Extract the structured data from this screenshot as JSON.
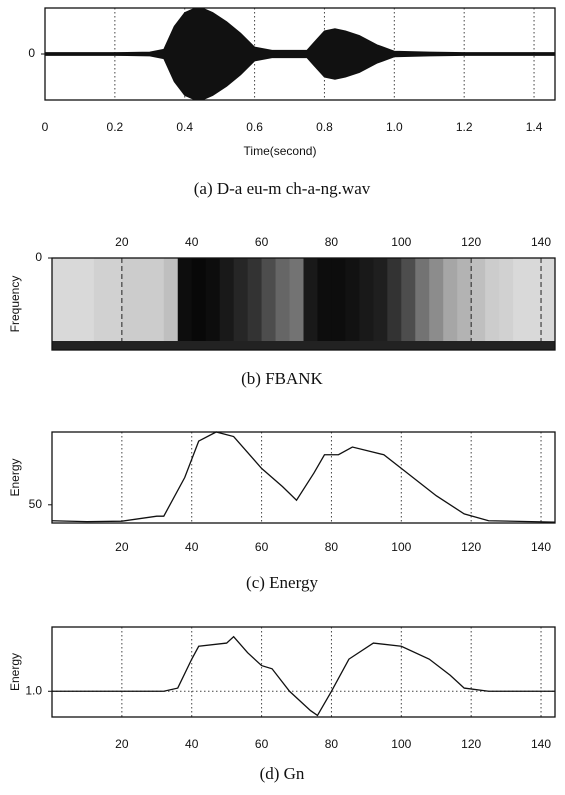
{
  "chart_data": [
    {
      "type": "waveform",
      "caption": "(a) D-a eu-m ch-a-ng.wav",
      "x_label": "Time(second)",
      "x": [
        0,
        0.1,
        0.2,
        0.3,
        0.34,
        0.37,
        0.4,
        0.43,
        0.45,
        0.48,
        0.52,
        0.56,
        0.6,
        0.65,
        0.7,
        0.75,
        0.77,
        0.8,
        0.83,
        0.86,
        0.9,
        0.95,
        1.0,
        1.1,
        1.2,
        1.3,
        1.46
      ],
      "values": [
        0.03,
        0.03,
        0.03,
        0.04,
        0.1,
        0.6,
        0.9,
        1.0,
        1.0,
        0.9,
        0.7,
        0.45,
        0.15,
        0.08,
        0.08,
        0.08,
        0.25,
        0.5,
        0.55,
        0.5,
        0.4,
        0.2,
        0.06,
        0.04,
        0.03,
        0.03,
        0.03
      ],
      "color": "#111111",
      "xlim": [
        0,
        1.46
      ],
      "ylim": [
        -1,
        1
      ],
      "xticks": [
        0,
        0.2,
        0.4,
        0.6,
        0.8,
        {
          "value": 1,
          "label": "1.0"
        },
        1.2,
        1.4
      ],
      "yticks": [
        0
      ],
      "grid": "x"
    },
    {
      "type": "heatmap",
      "caption": "(b) FBANK",
      "y_label": "Frequency",
      "x": [
        0,
        4,
        8,
        12,
        16,
        20,
        24,
        28,
        32,
        36,
        40,
        44,
        48,
        52,
        56,
        60,
        64,
        68,
        72,
        76,
        80,
        84,
        88,
        92,
        96,
        100,
        104,
        108,
        112,
        116,
        120,
        124,
        128,
        132,
        136,
        140
      ],
      "values": [
        0.15,
        0.15,
        0.15,
        0.18,
        0.18,
        0.2,
        0.2,
        0.2,
        0.25,
        0.95,
        0.97,
        0.95,
        0.9,
        0.85,
        0.8,
        0.7,
        0.6,
        0.55,
        0.9,
        0.95,
        0.95,
        0.93,
        0.9,
        0.88,
        0.8,
        0.7,
        0.55,
        0.45,
        0.35,
        0.3,
        0.25,
        0.2,
        0.18,
        0.15,
        0.15,
        0.15
      ],
      "xlim": [
        0,
        144
      ],
      "xticks": [
        20,
        40,
        60,
        80,
        100,
        120,
        140
      ],
      "yticks": [
        0
      ]
    },
    {
      "type": "line",
      "caption": "(c) Energy",
      "y_label": "Energy",
      "x": [
        0,
        10,
        20,
        30,
        32,
        38,
        42,
        47,
        52,
        60,
        66,
        70,
        75,
        78,
        82,
        86,
        95,
        100,
        110,
        118,
        125,
        144
      ],
      "values": [
        46.5,
        46.3,
        46.4,
        47.5,
        47.5,
        56,
        64,
        66,
        65,
        58,
        54,
        51,
        57,
        61,
        61,
        62.7,
        61,
        58,
        52,
        48,
        46.5,
        46.2
      ],
      "color": "#111111",
      "xlim": [
        0,
        144
      ],
      "ylim": [
        46,
        66
      ],
      "xticks": [
        20,
        40,
        60,
        80,
        100,
        120,
        140
      ],
      "yticks": [
        50
      ],
      "grid": "x"
    },
    {
      "type": "line",
      "caption": "(d) Gn",
      "y_label": "Energy",
      "x": [
        0,
        32,
        36,
        40,
        42,
        50,
        52,
        56,
        60,
        63,
        68,
        74,
        76,
        80,
        85,
        92,
        100,
        108,
        114,
        118,
        125,
        144
      ],
      "values": [
        1.0,
        1.0,
        1.01,
        1.1,
        1.14,
        1.15,
        1.17,
        1.12,
        1.08,
        1.07,
        1.0,
        0.94,
        0.925,
        1.0,
        1.1,
        1.15,
        1.14,
        1.1,
        1.05,
        1.01,
        1.0,
        1.0
      ],
      "color": "#111111",
      "xlim": [
        0,
        144
      ],
      "ylim": [
        0.92,
        1.2
      ],
      "xticks": [
        20,
        40,
        60,
        80,
        100,
        120,
        140
      ],
      "yticks": [
        {
          "value": 1,
          "label": "1.0"
        }
      ],
      "grid": "xy"
    }
  ]
}
